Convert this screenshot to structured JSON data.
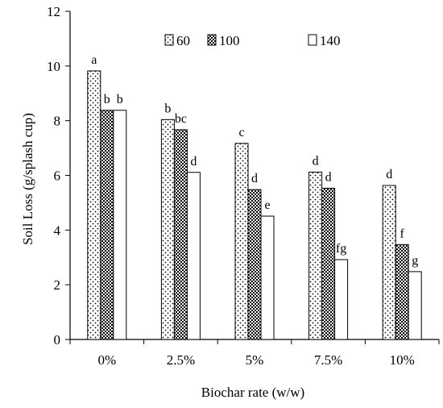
{
  "chart_data": {
    "type": "bar",
    "title": "",
    "xlabel": "Biochar rate (w/w)",
    "ylabel": "Soil Loss (g/splash cup)",
    "ylim": [
      0,
      12
    ],
    "yticks": [
      "0",
      "2",
      "4",
      "6",
      "8",
      "10",
      "12"
    ],
    "categories": [
      "0%",
      "2.5%",
      "5%",
      "7.5%",
      "10%"
    ],
    "series": [
      {
        "name": "60",
        "pattern": "dotted-diagonal",
        "values": [
          9.82,
          8.04,
          7.17,
          6.12,
          5.63
        ],
        "labels": [
          "a",
          "b",
          "c",
          "d",
          "d"
        ]
      },
      {
        "name": "100",
        "pattern": "checker",
        "values": [
          8.38,
          7.67,
          5.48,
          5.53,
          3.47
        ],
        "labels": [
          "b",
          "bc",
          "d",
          "d",
          "f"
        ]
      },
      {
        "name": "140",
        "pattern": "blank",
        "values": [
          8.38,
          6.11,
          4.51,
          2.92,
          2.48
        ],
        "labels": [
          "b",
          "d",
          "e",
          "fg",
          "g"
        ]
      }
    ],
    "legend_position": "top",
    "grid": false,
    "colors": {
      "bar_edge": "#000000",
      "fill": "#ffffff",
      "pattern": "#000000"
    }
  }
}
